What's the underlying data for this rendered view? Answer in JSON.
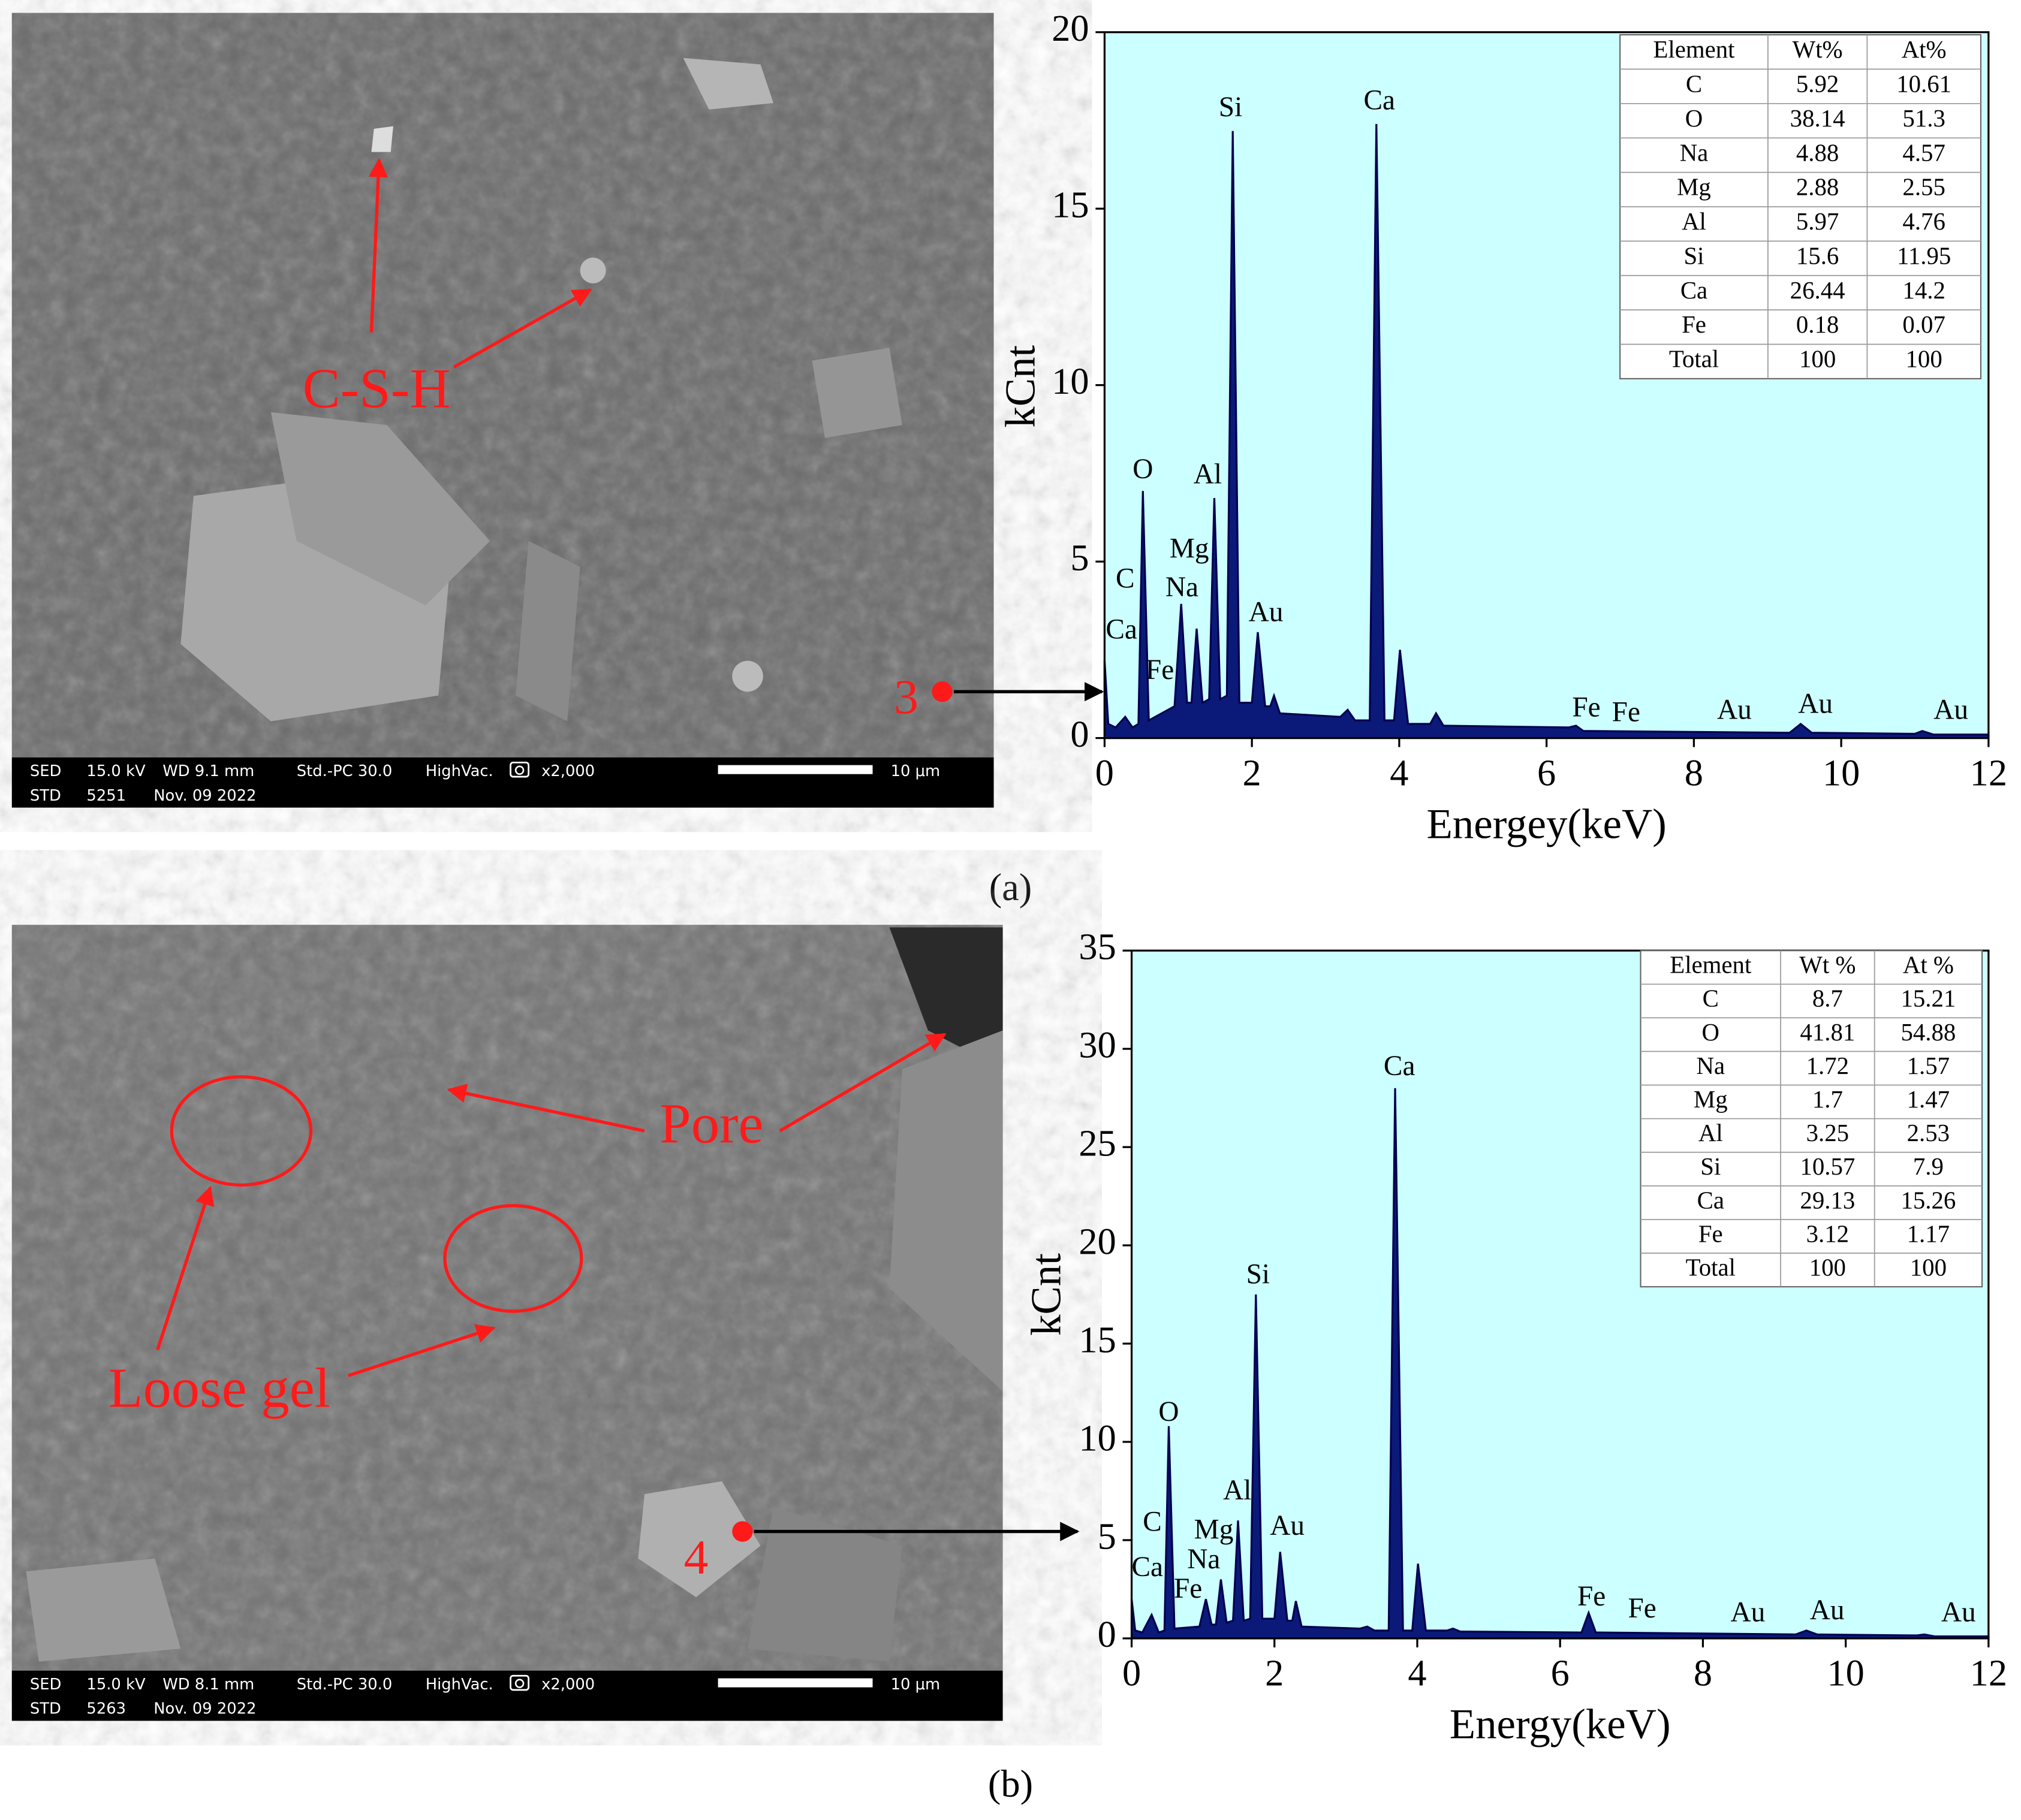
{
  "panels": [
    {
      "caption": "(a)",
      "annotations": [
        "C-S-H"
      ],
      "point": "3",
      "info_top": [
        "SED",
        "15.0 kV",
        "WD 9.1 mm",
        "Std.-PC 30.0",
        "HighVac.",
        "x2,000"
      ],
      "info_bottom": [
        "STD",
        "5251",
        "Nov. 09 2022"
      ],
      "scale": "10 μm"
    },
    {
      "caption": "(b)",
      "annotations": [
        "Pore",
        "Loose gel"
      ],
      "point": "4",
      "info_top": [
        "SED",
        "15.0 kV",
        "WD 8.1 mm",
        "Std.-PC 30.0",
        "HighVac.",
        "x2,000"
      ],
      "info_bottom": [
        "STD",
        "5263",
        "Nov. 09 2022"
      ],
      "scale": "10 μm"
    }
  ],
  "chart_data": [
    {
      "type": "area",
      "x_label": "Energey(keV)",
      "y_label": "kCnt",
      "xlim": [
        0,
        12
      ],
      "xticks": [
        0,
        2,
        4,
        6,
        8,
        10,
        12
      ],
      "ylim": [
        0,
        20
      ],
      "yticks": [
        0,
        5,
        10,
        15,
        20
      ],
      "color": "#0b1a78",
      "background": "#ccffff",
      "x": [
        0,
        0.05,
        0.15,
        0.28,
        0.38,
        0.46,
        0.52,
        0.6,
        0.95,
        1.04,
        1.12,
        1.18,
        1.25,
        1.33,
        1.42,
        1.49,
        1.57,
        1.66,
        1.74,
        1.83,
        2.0,
        2.08,
        2.18,
        2.25,
        2.3,
        2.38,
        3.2,
        3.3,
        3.4,
        3.6,
        3.69,
        3.8,
        3.93,
        4.01,
        4.12,
        4.42,
        4.5,
        4.6,
        6.3,
        6.4,
        6.5,
        9.3,
        9.45,
        9.6,
        11,
        11.1,
        11.25,
        12
      ],
      "values": [
        2.2,
        0.4,
        0.3,
        0.6,
        0.3,
        0.4,
        7.0,
        0.5,
        0.9,
        3.8,
        1.0,
        1.0,
        3.1,
        1.0,
        1.1,
        6.8,
        1.1,
        1.2,
        17.2,
        1.0,
        1.0,
        3.0,
        0.9,
        0.9,
        1.2,
        0.7,
        0.6,
        0.8,
        0.5,
        0.5,
        17.4,
        0.5,
        0.5,
        2.5,
        0.4,
        0.4,
        0.7,
        0.35,
        0.3,
        0.35,
        0.2,
        0.15,
        0.4,
        0.15,
        0.12,
        0.2,
        0.1,
        0.1
      ],
      "annotations": [
        {
          "text": "Ca",
          "x": 0.23,
          "y": 3.0
        },
        {
          "text": "C",
          "x": 0.28,
          "y": 4.45
        },
        {
          "text": "Fe",
          "x": 0.75,
          "y": 1.86
        },
        {
          "text": "O",
          "x": 0.52,
          "y": 7.55
        },
        {
          "text": "Na",
          "x": 1.05,
          "y": 4.2
        },
        {
          "text": "Mg",
          "x": 1.15,
          "y": 5.3
        },
        {
          "text": "Al",
          "x": 1.4,
          "y": 7.4
        },
        {
          "text": "Si",
          "x": 1.71,
          "y": 17.8
        },
        {
          "text": "Au",
          "x": 2.19,
          "y": 3.5
        },
        {
          "text": "Ca",
          "x": 3.73,
          "y": 18.0
        },
        {
          "text": "Fe",
          "x": 6.54,
          "y": 0.8
        },
        {
          "text": "Fe",
          "x": 7.08,
          "y": 0.66
        },
        {
          "text": "Au",
          "x": 8.55,
          "y": 0.73
        },
        {
          "text": "Au",
          "x": 9.65,
          "y": 0.9
        },
        {
          "text": "Au",
          "x": 11.49,
          "y": 0.73
        }
      ],
      "table": {
        "columns": [
          "Element",
          "Wt%",
          "At%"
        ],
        "rows": [
          [
            "C",
            5.92,
            10.61
          ],
          [
            "O",
            38.14,
            51.3
          ],
          [
            "Na",
            4.88,
            4.57
          ],
          [
            "Mg",
            2.88,
            2.55
          ],
          [
            "Al",
            5.97,
            4.76
          ],
          [
            "Si",
            15.6,
            11.95
          ],
          [
            "Ca",
            26.44,
            14.2
          ],
          [
            "Fe",
            0.18,
            0.07
          ],
          [
            "Total",
            100,
            100
          ]
        ]
      }
    },
    {
      "type": "area",
      "x_label": "Energy(keV)",
      "y_label": "kCnt",
      "xlim": [
        0,
        12
      ],
      "xticks": [
        0,
        2,
        4,
        6,
        8,
        10,
        12
      ],
      "ylim": [
        0,
        35
      ],
      "yticks": [
        0,
        5,
        10,
        15,
        20,
        25,
        30,
        35
      ],
      "color": "#0b1a78",
      "background": "#ccffff",
      "x": [
        0,
        0.05,
        0.15,
        0.28,
        0.38,
        0.46,
        0.52,
        0.6,
        0.95,
        1.04,
        1.12,
        1.18,
        1.25,
        1.33,
        1.42,
        1.49,
        1.57,
        1.66,
        1.74,
        1.83,
        2.0,
        2.08,
        2.18,
        2.25,
        2.3,
        2.38,
        3.2,
        3.3,
        3.4,
        3.6,
        3.69,
        3.8,
        3.93,
        4.01,
        4.12,
        4.42,
        4.5,
        4.6,
        6.3,
        6.4,
        6.5,
        9.3,
        9.45,
        9.6,
        11,
        11.1,
        11.25,
        12
      ],
      "values": [
        2.0,
        0.4,
        0.3,
        1.2,
        0.3,
        0.4,
        10.8,
        0.5,
        0.6,
        2.0,
        0.7,
        0.7,
        3.0,
        0.8,
        0.9,
        6.0,
        0.9,
        1.0,
        17.5,
        1.0,
        1.0,
        4.4,
        0.9,
        0.9,
        1.9,
        0.6,
        0.5,
        0.6,
        0.4,
        0.4,
        28,
        0.4,
        0.4,
        3.8,
        0.4,
        0.4,
        0.5,
        0.35,
        0.3,
        1.3,
        0.3,
        0.2,
        0.4,
        0.2,
        0.15,
        0.2,
        0.1,
        0.1
      ],
      "annotations": [
        {
          "text": "Ca",
          "x": 0.22,
          "y": 3.5
        },
        {
          "text": "C",
          "x": 0.29,
          "y": 5.8
        },
        {
          "text": "Fe",
          "x": 0.79,
          "y": 2.4
        },
        {
          "text": "O",
          "x": 0.52,
          "y": 11.4
        },
        {
          "text": "Na",
          "x": 1.01,
          "y": 3.9
        },
        {
          "text": "Mg",
          "x": 1.15,
          "y": 5.4
        },
        {
          "text": "Al",
          "x": 1.48,
          "y": 7.4
        },
        {
          "text": "Si",
          "x": 1.77,
          "y": 18.4
        },
        {
          "text": "Au",
          "x": 2.18,
          "y": 5.6
        },
        {
          "text": "Ca",
          "x": 3.75,
          "y": 29.0
        },
        {
          "text": "Fe",
          "x": 6.44,
          "y": 2.0
        },
        {
          "text": "Fe",
          "x": 7.15,
          "y": 1.4
        },
        {
          "text": "Au",
          "x": 8.63,
          "y": 1.2
        },
        {
          "text": "Au",
          "x": 9.74,
          "y": 1.3
        },
        {
          "text": "Au",
          "x": 11.58,
          "y": 1.2
        }
      ],
      "table": {
        "columns": [
          "Element",
          "Wt %",
          "At %"
        ],
        "rows": [
          [
            "C",
            8.7,
            15.21
          ],
          [
            "O",
            41.81,
            54.88
          ],
          [
            "Na",
            1.72,
            1.57
          ],
          [
            "Mg",
            1.7,
            1.47
          ],
          [
            "Al",
            3.25,
            2.53
          ],
          [
            "Si",
            10.57,
            7.9
          ],
          [
            "Ca",
            29.13,
            15.26
          ],
          [
            "Fe",
            3.12,
            1.17
          ],
          [
            "Total",
            100,
            100
          ]
        ]
      }
    }
  ]
}
